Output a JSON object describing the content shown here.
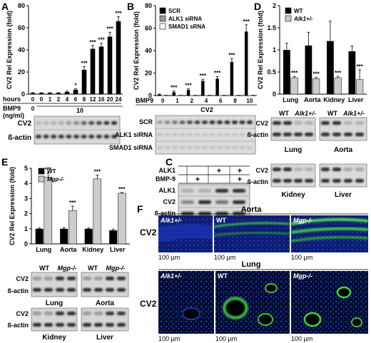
{
  "panels": {
    "A": {
      "letter": "A"
    },
    "B": {
      "letter": "B"
    },
    "C": {
      "letter": "C"
    },
    "D": {
      "letter": "D"
    },
    "E": {
      "letter": "E"
    },
    "F": {
      "letter": "F"
    }
  },
  "chart_data": [
    {
      "id": "A",
      "type": "bar",
      "ylabel": "CV2 Rel Expression (fold)",
      "ylim": [
        0,
        80
      ],
      "yticks": [
        0,
        20,
        40,
        60,
        80
      ],
      "x_row1_label": "hours",
      "x_row1": [
        "0",
        "0",
        "1",
        "2",
        "4",
        "6",
        "8",
        "12",
        "16",
        "20",
        "24"
      ],
      "x_row2_label": "BMP9",
      "x_row2_unit": "(ng/ml)",
      "x_row2_first": "0",
      "x_row2_rest": "10",
      "values": [
        1,
        1,
        1,
        1,
        2,
        4,
        22,
        41,
        43,
        52,
        66
      ],
      "errors": [
        0.3,
        0.3,
        0.3,
        0.3,
        0.8,
        1,
        3,
        3,
        3,
        4,
        4
      ],
      "significance": [
        "",
        "",
        "",
        "",
        "",
        "*",
        "***",
        "***",
        "***",
        "***",
        "***"
      ],
      "colors": {
        "bar": "#000000"
      }
    },
    {
      "id": "B",
      "type": "bar",
      "ylabel": "CV2 Rel Expression (fold)",
      "ylim": [
        0,
        80
      ],
      "yticks": [
        0,
        20,
        40,
        60,
        80
      ],
      "x_row1_label": "BMP9",
      "x_row1": [
        "0",
        "1",
        "2",
        "4",
        "6",
        "8",
        "10"
      ],
      "x_row2": "CV2",
      "legend": [
        "SCR",
        "ALK1 siRNA",
        "SMAD1 sRNA"
      ],
      "legend_colors": [
        "#000000",
        "#9a9a9a",
        "#ffffff"
      ],
      "series": [
        {
          "name": "SCR",
          "values": [
            1,
            3,
            5,
            13,
            15,
            30,
            57
          ],
          "errors": [
            0.3,
            1,
            1,
            1.5,
            2,
            3,
            6
          ]
        },
        {
          "name": "ALK1 siRNA",
          "values": [
            0.3,
            0.3,
            0.3,
            0.3,
            0.3,
            0.3,
            0.3
          ]
        },
        {
          "name": "SMAD1 sRNA",
          "values": [
            0.3,
            0.3,
            0.3,
            0.3,
            0.3,
            0.3,
            0.3
          ]
        }
      ],
      "significance": [
        "",
        "***",
        "***",
        "***",
        "***",
        "***",
        "***"
      ]
    },
    {
      "id": "D",
      "type": "bar",
      "ylabel": "CV2 Rel Expression (fold)",
      "ylim": [
        0,
        2
      ],
      "yticks": [
        0,
        0.5,
        1,
        1.5,
        2
      ],
      "categories": [
        "Lung",
        "Aorta",
        "Kidney",
        "Liver"
      ],
      "legend": [
        "WT",
        "Alk1+/-"
      ],
      "legend_colors": [
        "#000000",
        "#cccccc"
      ],
      "series": [
        {
          "name": "WT",
          "values": [
            1.0,
            1.1,
            1.2,
            0.97
          ],
          "errors": [
            0.15,
            0.3,
            0.45,
            0.12
          ]
        },
        {
          "name": "Alk1+/-",
          "values": [
            0.37,
            0.35,
            0.37,
            0.33
          ],
          "errors": [
            0.03,
            0.03,
            0.03,
            0.22
          ]
        }
      ],
      "significance": [
        "***",
        "***",
        "***",
        "***"
      ]
    },
    {
      "id": "E",
      "type": "bar",
      "ylabel": "CV2 Rel Expression (fold)",
      "ylim": [
        0,
        5
      ],
      "yticks": [
        0,
        1,
        2,
        3,
        4,
        5
      ],
      "categories": [
        "Lung",
        "Aorta",
        "Kidney",
        "Liver"
      ],
      "legend": [
        "WT",
        "Mgp-/-"
      ],
      "legend_colors": [
        "#000000",
        "#cccccc"
      ],
      "series": [
        {
          "name": "WT",
          "values": [
            1.0,
            1.0,
            1.0,
            0.9
          ],
          "errors": [
            0.05,
            0.08,
            0.05,
            0.08
          ]
        },
        {
          "name": "Mgp-/-",
          "values": [
            4.4,
            2.2,
            4.3,
            3.35
          ],
          "errors": [
            0.3,
            0.3,
            0.25,
            0.05
          ]
        }
      ],
      "significance": [
        "***",
        "***",
        "***",
        "***"
      ]
    }
  ],
  "blots": {
    "A": {
      "rows": [
        "CV2",
        "ß-actin"
      ]
    },
    "B": {
      "rows": [
        "SCR",
        "ALK1 siRNA",
        "SMAD1 siRNA"
      ]
    },
    "C": {
      "header_rows": [
        {
          "label": "ALK1",
          "marks": [
            "",
            "",
            "+",
            "+"
          ]
        },
        {
          "label": "BMP-9",
          "marks": [
            "",
            "+",
            "",
            "+"
          ]
        }
      ],
      "rows": [
        "ALK1",
        "CV2",
        "ß-actin"
      ]
    },
    "D": {
      "top_headers": [
        "WT",
        "Alk1+/-",
        "WT",
        "Alk1+/-"
      ],
      "rows_top": [
        "CV2",
        "ß-actin"
      ],
      "rows_bottom": [
        "CV2",
        "ß-actin"
      ],
      "tissues": [
        "Lung",
        "Aorta",
        "Kidney",
        "Liver"
      ]
    },
    "E": {
      "top_headers": [
        "WT",
        "Mgp-/-",
        "WT",
        "Mgp-/-"
      ],
      "rows_top": [
        "CV2",
        "ß-actin"
      ],
      "rows_bottom": [
        "CV2",
        "ß-actin"
      ],
      "tissues": [
        "Lung",
        "Aorta",
        "Kidney",
        "Liver"
      ]
    }
  },
  "micrographs": {
    "aorta_title": "Aorta",
    "lung_title": "Lung",
    "row_label": "CV2",
    "genotypes": [
      "Alk1+/-",
      "WT",
      "Mgp-/-"
    ],
    "scale": "100 µm"
  }
}
